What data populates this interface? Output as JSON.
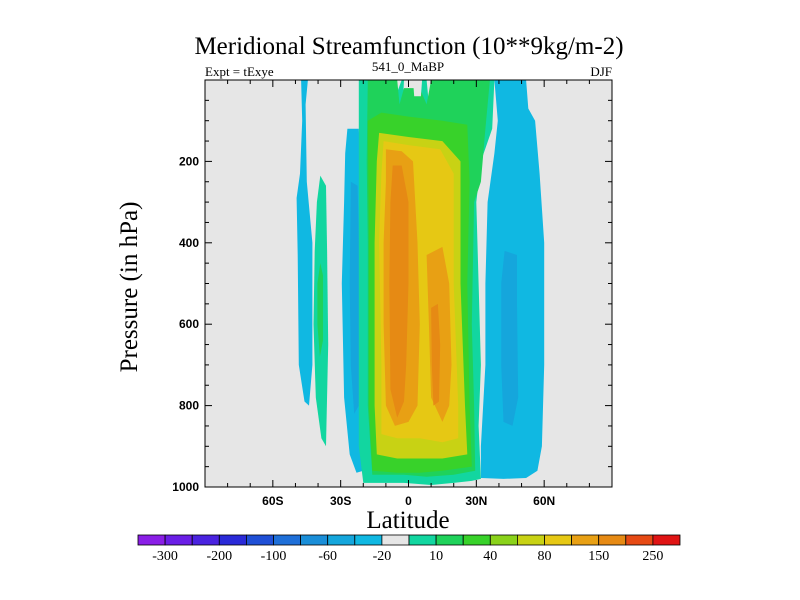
{
  "chart_data": {
    "type": "heatmap",
    "title": "Meridional Streamfunction (10**9kg/m-2)",
    "subtitle_left": "Expt = tExye",
    "subtitle_center": "541_0_MaBP",
    "subtitle_right": "DJF",
    "xlabel": "Latitude",
    "ylabel": "Pressure (in hPa)",
    "xlim": [
      -90,
      90
    ],
    "ylim": [
      1000,
      0
    ],
    "x_ticks": [
      {
        "value": -60,
        "label": "60S"
      },
      {
        "value": -30,
        "label": "30S"
      },
      {
        "value": 0,
        "label": "0"
      },
      {
        "value": 30,
        "label": "30N"
      },
      {
        "value": 60,
        "label": "60N"
      }
    ],
    "y_ticks": [
      {
        "value": 200,
        "label": "200"
      },
      {
        "value": 400,
        "label": "400"
      },
      {
        "value": 600,
        "label": "600"
      },
      {
        "value": 800,
        "label": "800"
      },
      {
        "value": 1000,
        "label": "1000"
      }
    ],
    "colorbar_labels": [
      "-300",
      "-200",
      "-100",
      "-60",
      "-20",
      "10",
      "40",
      "80",
      "150",
      "250"
    ],
    "levels": [
      -300,
      -250,
      -200,
      -150,
      -100,
      -80,
      -60,
      -40,
      -20,
      -10,
      10,
      20,
      40,
      60,
      80,
      100,
      150,
      200,
      250,
      300
    ],
    "colorbar_colors": [
      "#8a1ee6",
      "#6a1ee6",
      "#4a23e0",
      "#2a2ad8",
      "#1f4fd6",
      "#1e6fd8",
      "#1a8ed8",
      "#15a6dc",
      "#10b8e2",
      "#e6e6e6",
      "#12d6a0",
      "#1fd25a",
      "#38d22a",
      "#8ad21a",
      "#c8d214",
      "#e6c814",
      "#e8a014",
      "#e68a14",
      "#e64a14",
      "#e01414"
    ],
    "missing_color": "#e6e6e6",
    "features": [
      {
        "sign": "negative",
        "center_lat": -47,
        "p_top": 0,
        "p_bottom": 800,
        "peak": -20
      },
      {
        "sign": "positive",
        "center_lat": -40,
        "p_top": 240,
        "p_bottom": 900,
        "peak": 40
      },
      {
        "sign": "negative",
        "center_lat": -25,
        "p_top": 120,
        "p_bottom": 960,
        "peak": -60
      },
      {
        "sign": "positive",
        "center_lat": 5,
        "p_top": 0,
        "p_bottom": 1000,
        "peak": 200
      },
      {
        "sign": "negative",
        "center_lat": 45,
        "p_top": 0,
        "p_bottom": 980,
        "peak": -60
      }
    ]
  }
}
